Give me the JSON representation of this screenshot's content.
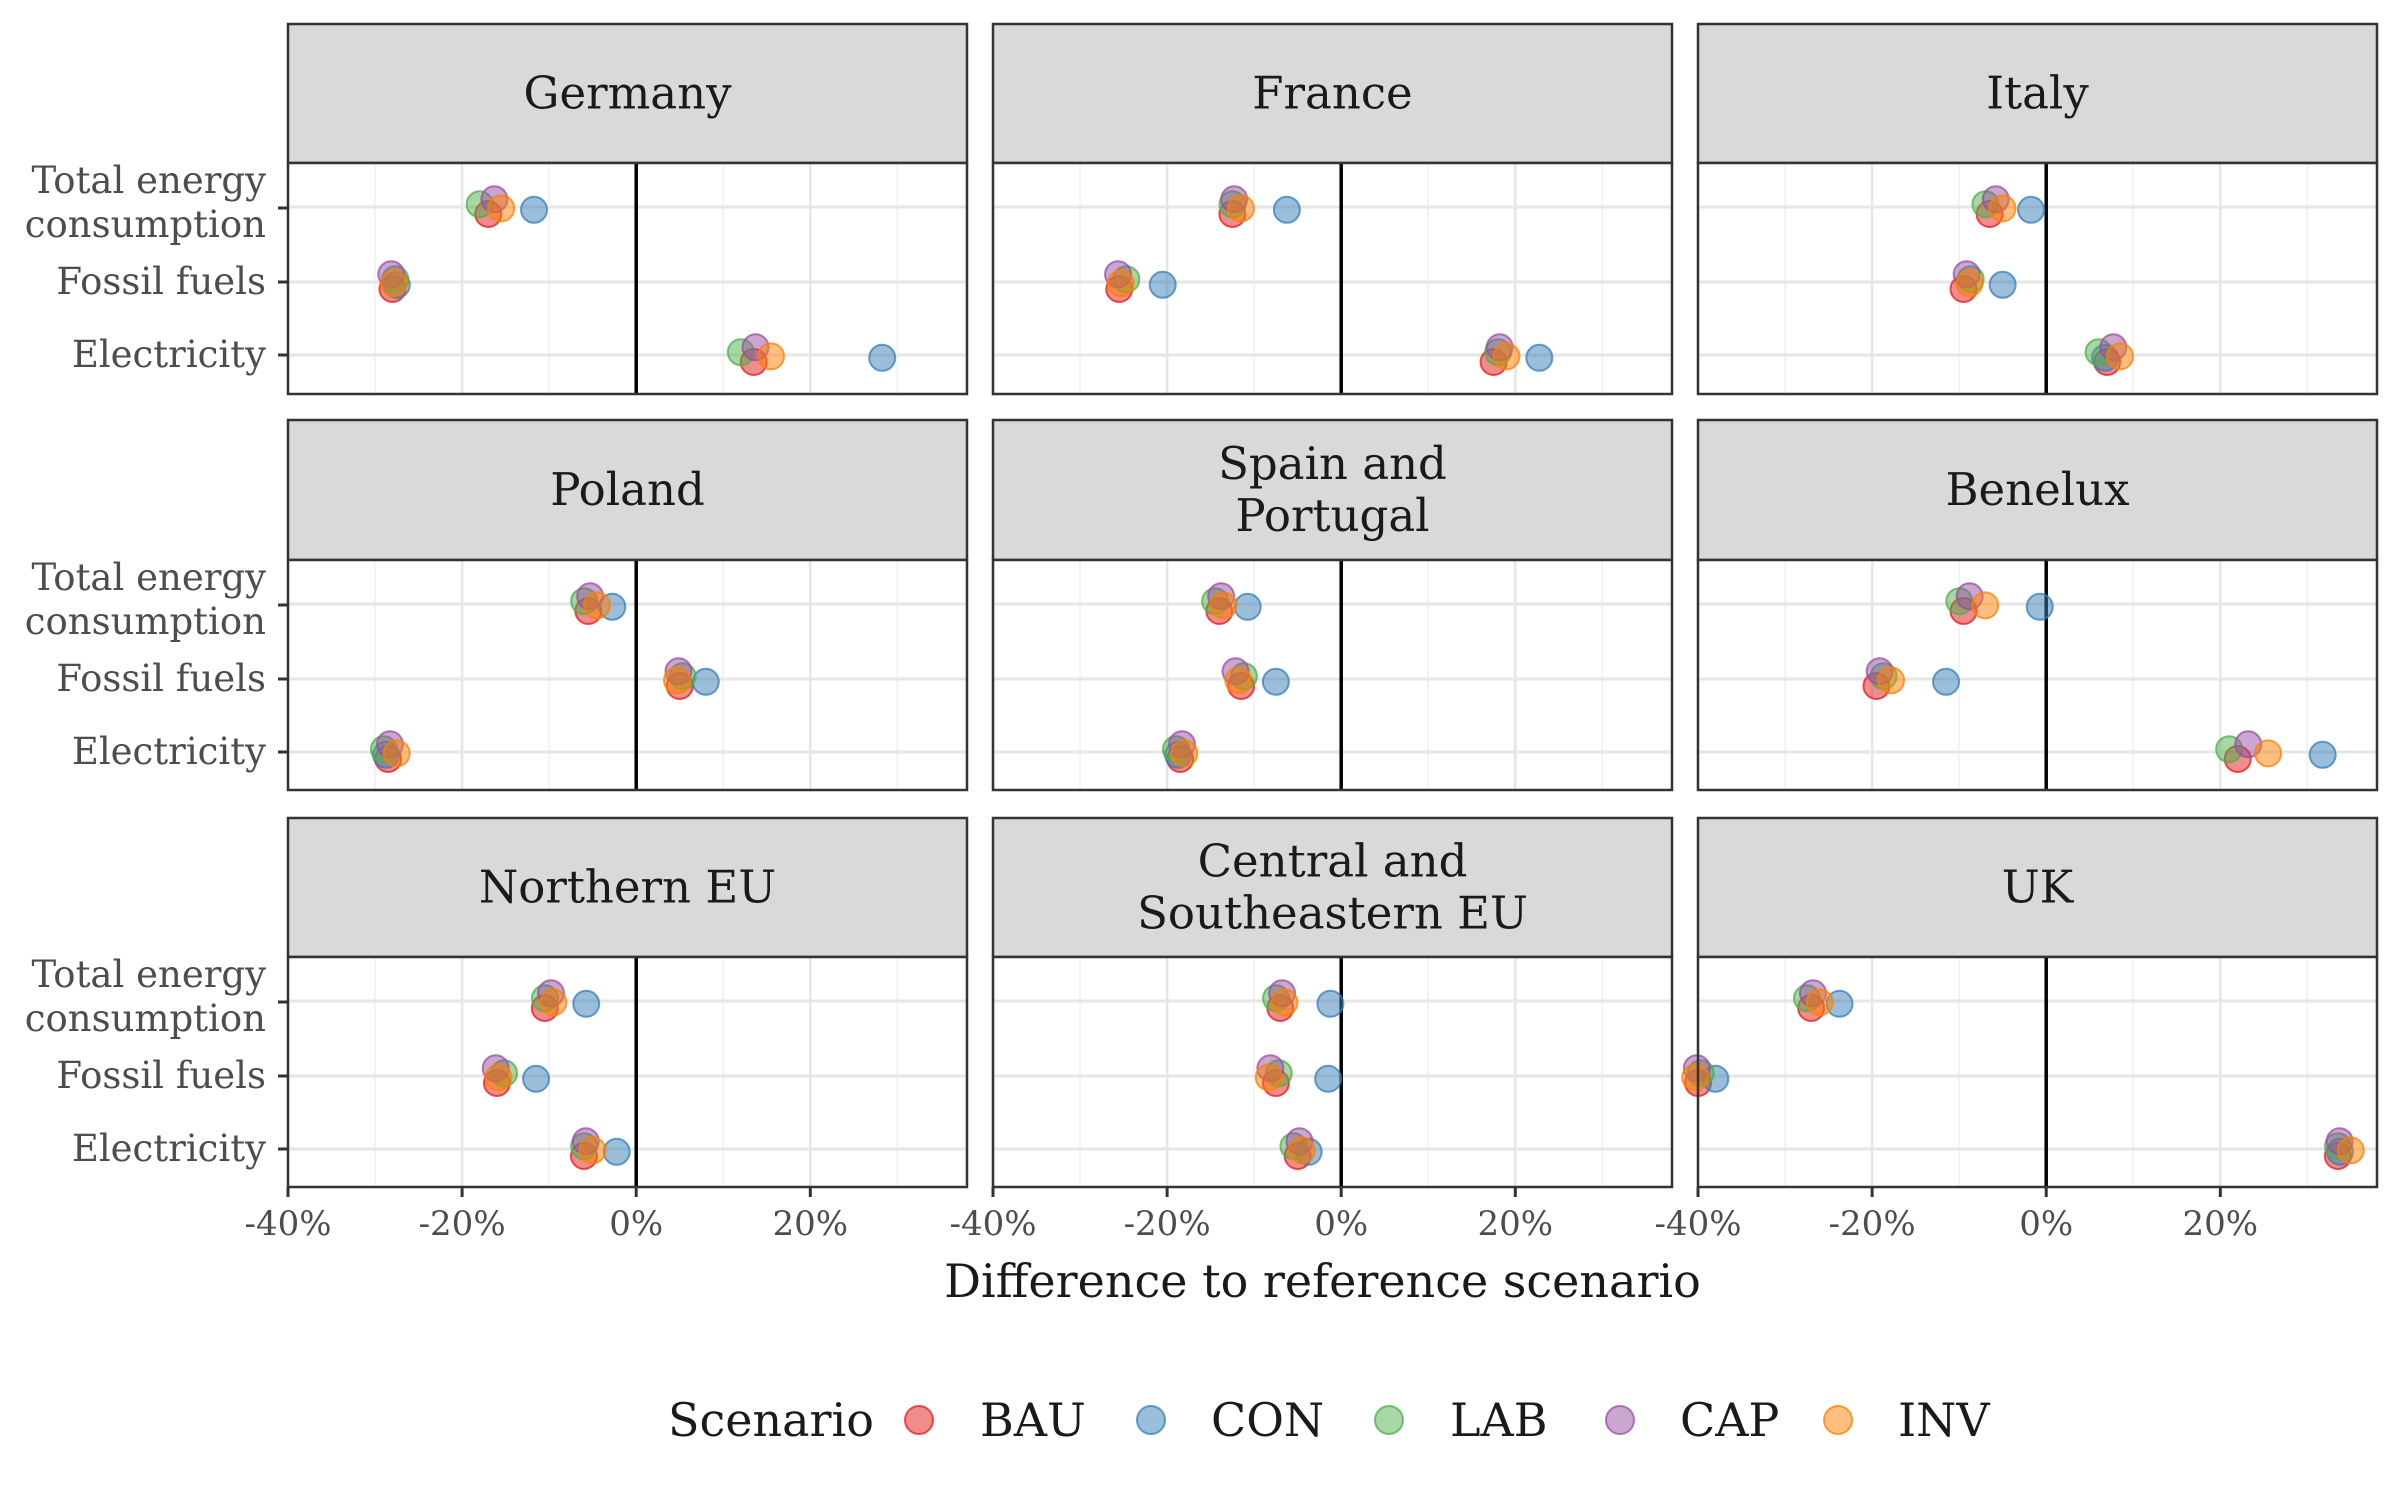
{
  "chart_data": {
    "type": "scatter",
    "xlabel": "Difference to reference scenario",
    "xlim": [
      -40,
      38
    ],
    "x_ticks": [
      "-40%",
      "-20%",
      "0%",
      "20%"
    ],
    "x_tick_values": [
      -40,
      -20,
      0,
      20
    ],
    "grid": true,
    "legend_position": "bottom",
    "legend_title": "Scenario",
    "categories": [
      "Total energy consumption",
      "Fossil fuels",
      "Electricity"
    ],
    "category_labels": [
      [
        "Total energy",
        "consumption"
      ],
      [
        "Fossil fuels"
      ],
      [
        "Electricity"
      ]
    ],
    "series": [
      {
        "name": "BAU",
        "color": "#E41A1C"
      },
      {
        "name": "CON",
        "color": "#377EB8"
      },
      {
        "name": "LAB",
        "color": "#4DAF4A"
      },
      {
        "name": "CAP",
        "color": "#984EA3"
      },
      {
        "name": "INV",
        "color": "#FF7F00"
      }
    ],
    "panels": [
      {
        "title": [
          "Germany"
        ],
        "values": {
          "BAU": [
            -17,
            -28,
            13.5
          ],
          "CON": [
            -12.5,
            -27,
            27.5
          ],
          "LAB": [
            -17.5,
            -28,
            12.5
          ],
          "CAP": [
            -16.5,
            -28,
            13.5
          ],
          "INV": [
            -16,
            -27.5,
            15
          ]
        }
      },
      {
        "title": [
          "France"
        ],
        "values": {
          "BAU": [
            -12.5,
            -25.5,
            17.5
          ],
          "CON": [
            -7,
            -20,
            22
          ],
          "LAB": [
            -12,
            -25,
            18.5
          ],
          "CAP": [
            -12.5,
            -25.5,
            18
          ],
          "INV": [
            -12,
            -25,
            18.5
          ]
        }
      },
      {
        "title": [
          "Italy"
        ],
        "values": {
          "BAU": [
            -6.5,
            -9.5,
            7
          ],
          "CON": [
            -2.5,
            -4.5,
            6
          ],
          "LAB": [
            -6.5,
            -9,
            6.5
          ],
          "CAP": [
            -6,
            -9,
            7.5
          ],
          "INV": [
            -5.5,
            -8.5,
            8
          ]
        }
      },
      {
        "title": [
          "Poland"
        ],
        "values": {
          "BAU": [
            -5.5,
            5,
            -28.5
          ],
          "CON": [
            -3.5,
            8.5,
            -29.5
          ],
          "LAB": [
            -5.5,
            5,
            -28.5
          ],
          "CAP": [
            -5.5,
            5,
            -28.5
          ],
          "INV": [
            -5,
            5,
            -28
          ]
        }
      },
      {
        "title": [
          "Spain and",
          "Portugal"
        ],
        "values": {
          "BAU": [
            -14,
            -11.5,
            -18.5
          ],
          "CON": [
            -11.5,
            -7,
            -19.5
          ],
          "LAB": [
            -14,
            -11.5,
            -18.5
          ],
          "CAP": [
            -14,
            -12,
            -18.5
          ],
          "INV": [
            -14,
            -11.5,
            -18.5
          ]
        }
      },
      {
        "title": [
          "Benelux"
        ],
        "values": {
          "BAU": [
            -9.5,
            -19.5,
            22
          ],
          "CON": [
            -1.5,
            -11,
            31
          ],
          "LAB": [
            -9.5,
            -19,
            21.5
          ],
          "CAP": [
            -9,
            -19,
            23
          ],
          "INV": [
            -7.5,
            -17.5,
            25
          ]
        }
      },
      {
        "title": [
          "Northern EU"
        ],
        "values": {
          "BAU": [
            -10.5,
            -16,
            -6
          ],
          "CON": [
            -6.5,
            -11,
            -3
          ],
          "LAB": [
            -10,
            -15.5,
            -5.5
          ],
          "CAP": [
            -10,
            -16,
            -6
          ],
          "INV": [
            -10,
            -15.5,
            -5.5
          ]
        }
      },
      {
        "title": [
          "Central and",
          "Southeastern EU"
        ],
        "values": {
          "BAU": [
            -7,
            -7.5,
            -5
          ],
          "CON": [
            -2,
            -1,
            -4.5
          ],
          "LAB": [
            -7,
            -7.5,
            -5
          ],
          "CAP": [
            -7,
            -8,
            -5
          ],
          "INV": [
            -7,
            -8,
            -5
          ]
        }
      },
      {
        "title": [
          "UK"
        ],
        "values": {
          "BAU": [
            -27,
            -40,
            33.5
          ],
          "CON": [
            -24.5,
            -37.5,
            33
          ],
          "LAB": [
            -27,
            -40,
            34
          ],
          "CAP": [
            -27,
            -40,
            33.5
          ],
          "INV": [
            -26.5,
            -40,
            34.5
          ]
        }
      }
    ]
  }
}
